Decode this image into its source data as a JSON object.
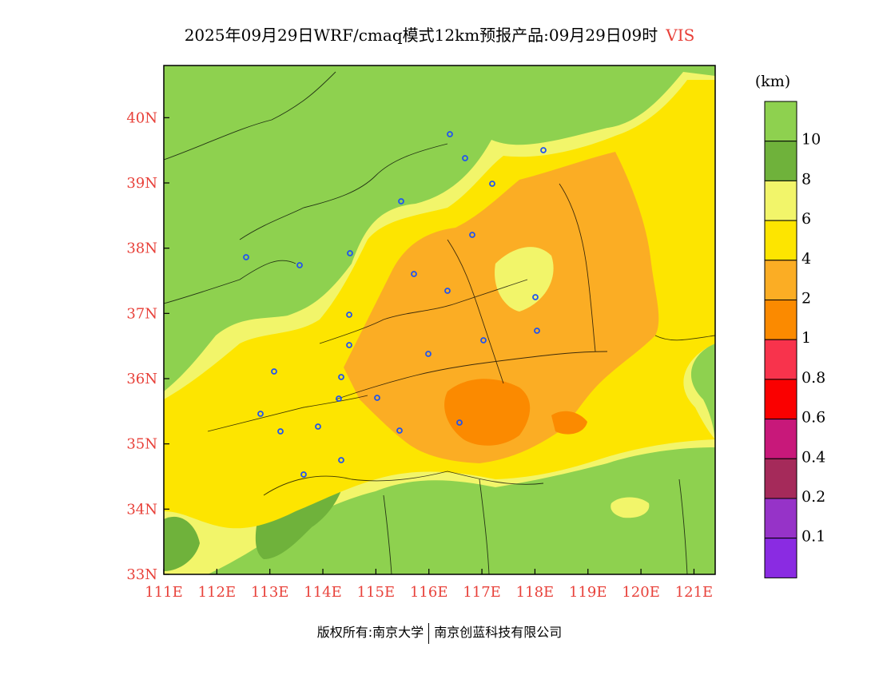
{
  "title": {
    "text": "2025年09月29日WRF/cmaq模式12km预报产品:09月29日09时",
    "variable": "VIS"
  },
  "map": {
    "lon_ticks": [
      "111E",
      "112E",
      "113E",
      "114E",
      "115E",
      "116E",
      "117E",
      "118E",
      "119E",
      "120E",
      "121E"
    ],
    "lat_ticks": [
      "33N",
      "34N",
      "35N",
      "36N",
      "37N",
      "38N",
      "39N",
      "40N"
    ],
    "lon_range": [
      111,
      121.4
    ],
    "lat_range": [
      33,
      40.8
    ]
  },
  "colorbar": {
    "unit": "(km)",
    "levels": [
      {
        "label": "10",
        "color": "#8ed14f"
      },
      {
        "label": "8",
        "color": "#6fb23b"
      },
      {
        "label": "6",
        "color": "#f2f56a"
      },
      {
        "label": "4",
        "color": "#fde500"
      },
      {
        "label": "2",
        "color": "#fbad24"
      },
      {
        "label": "1",
        "color": "#fb8a00"
      },
      {
        "label": "0.8",
        "color": "#f8334c"
      },
      {
        "label": "0.6",
        "color": "#fa0000"
      },
      {
        "label": "0.4",
        "color": "#c8187a"
      },
      {
        "label": "0.2",
        "color": "#a52a5a"
      },
      {
        "label": "0.1",
        "color": "#9633c8"
      },
      {
        "label": "",
        "color": "#8a2be2"
      }
    ]
  },
  "footer": {
    "copyright": "版权所有:南京大学",
    "company": "南京创蓝科技有限公司"
  },
  "colors": {
    "vis_gt10": "#8ed14f",
    "vis_8_10": "#6fb23b",
    "vis_6_8": "#f2f56a",
    "vis_4_6": "#fde500",
    "vis_2_4": "#fbad24",
    "vis_1_2": "#fb8a00",
    "station": "#2255ee",
    "axis_text": "#e8413a"
  }
}
